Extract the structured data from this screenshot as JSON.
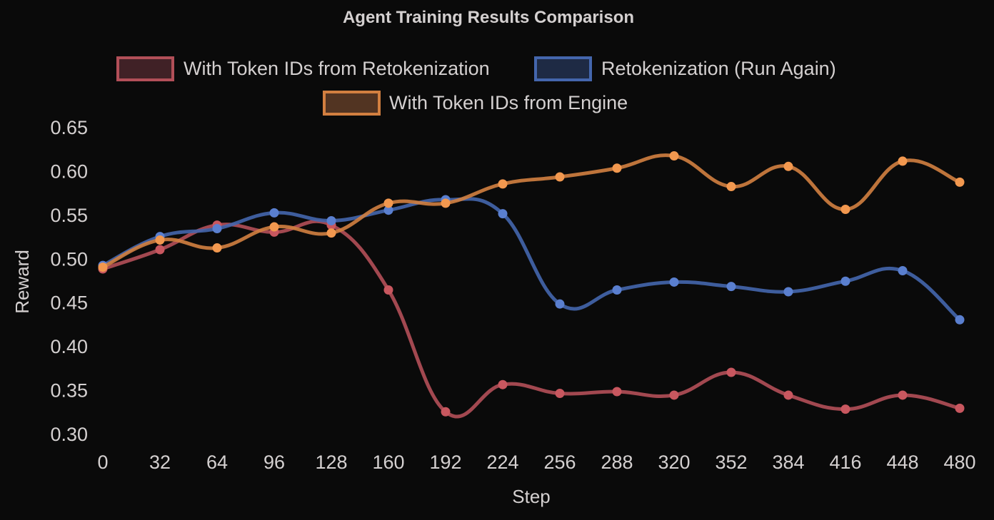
{
  "chart_data": {
    "type": "line",
    "title": "Agent Training Results Comparison",
    "xlabel": "Step",
    "ylabel": "Reward",
    "x": [
      0,
      32,
      64,
      96,
      128,
      160,
      192,
      224,
      256,
      288,
      320,
      352,
      384,
      416,
      448,
      480
    ],
    "xticks": [
      "0",
      "32",
      "64",
      "96",
      "128",
      "160",
      "192",
      "224",
      "256",
      "288",
      "320",
      "352",
      "384",
      "416",
      "448",
      "480"
    ],
    "yticks": [
      "0.30",
      "0.35",
      "0.40",
      "0.45",
      "0.50",
      "0.55",
      "0.60",
      "0.65"
    ],
    "ylim": [
      0.3,
      0.65
    ],
    "grid": false,
    "legend_position": "top",
    "series": [
      {
        "name": "With Token IDs from Retokenization",
        "color": "#b24f58",
        "marker_color": "#c8575f",
        "fill": "#402126",
        "values": [
          0.488,
          0.51,
          0.538,
          0.53,
          0.538,
          0.464,
          0.325,
          0.356,
          0.346,
          0.348,
          0.344,
          0.37,
          0.344,
          0.328,
          0.344,
          0.329
        ]
      },
      {
        "name": "Retokenization (Run Again)",
        "color": "#4466ad",
        "marker_color": "#5a7fcf",
        "fill": "#1e2a44",
        "values": [
          0.492,
          0.525,
          0.534,
          0.552,
          0.543,
          0.555,
          0.567,
          0.551,
          0.448,
          0.464,
          0.473,
          0.468,
          0.462,
          0.474,
          0.486,
          0.43
        ]
      },
      {
        "name": "With Token IDs from Engine",
        "color": "#d27f40",
        "marker_color": "#f2984f",
        "fill": "#523422",
        "values": [
          0.49,
          0.521,
          0.512,
          0.536,
          0.529,
          0.563,
          0.563,
          0.585,
          0.593,
          0.603,
          0.617,
          0.582,
          0.605,
          0.556,
          0.611,
          0.587
        ]
      }
    ]
  }
}
